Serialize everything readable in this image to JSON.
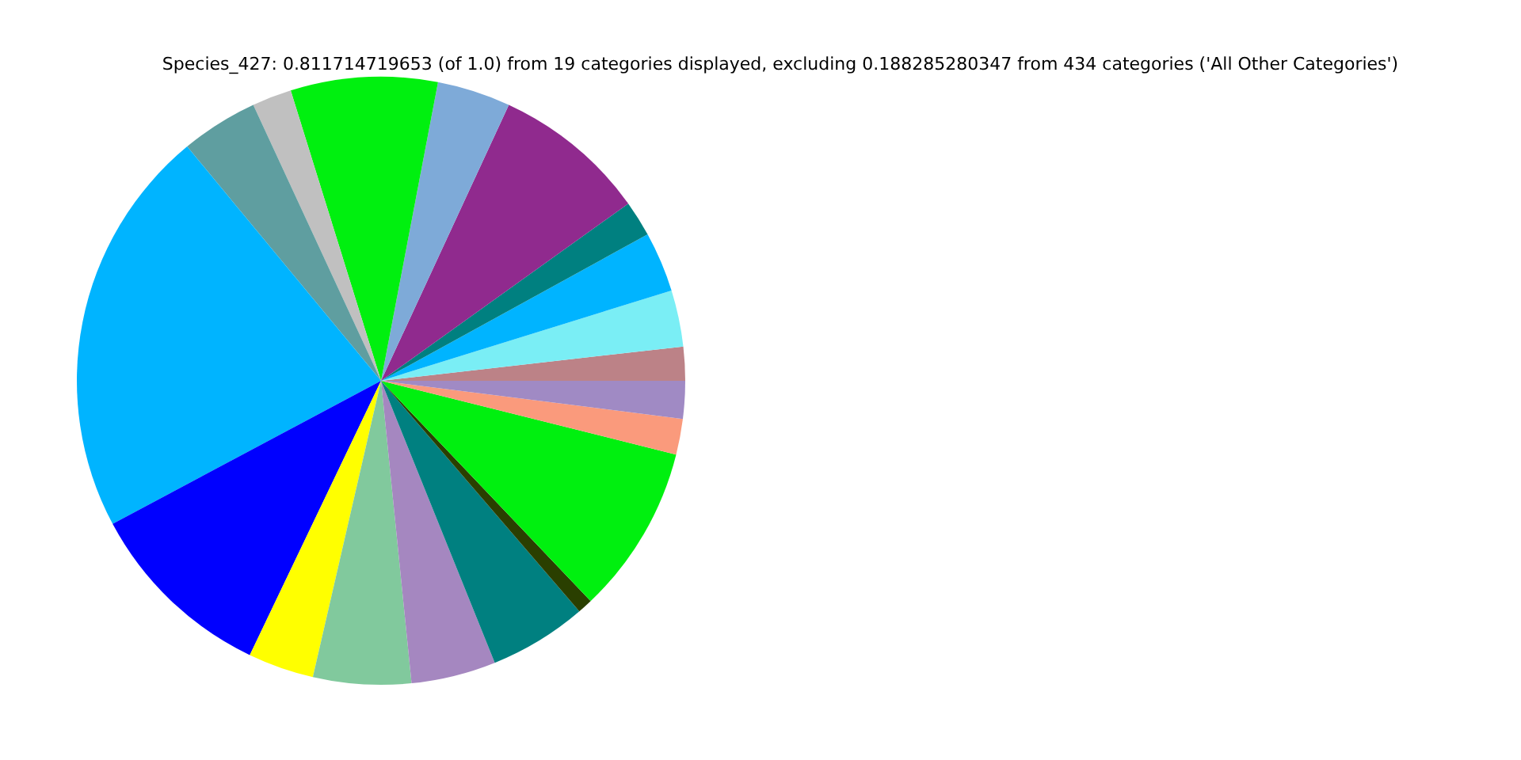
{
  "chart_data": {
    "type": "pie",
    "title": "Species_427: 0.811714719653 (of 1.0) from 19 categories displayed, excluding 0.188285280347 from 434 categories ('All Other Categories')",
    "categories": [
      null,
      null,
      null,
      null,
      null,
      null,
      null,
      null,
      null,
      null,
      null,
      null,
      null,
      null,
      null,
      null,
      null,
      null,
      null
    ],
    "values": [
      1.8,
      3.0,
      3.2,
      1.9,
      8.2,
      3.9,
      7.8,
      2.1,
      4.1,
      21.8,
      10.1,
      3.5,
      5.2,
      4.5,
      5.2,
      0.8,
      9.0,
      1.9,
      2.0
    ],
    "colors": [
      "#bc8287",
      "#7aeef5",
      "#00b4ff",
      "#008080",
      "#902a8e",
      "#7eaad8",
      "#00f00f",
      "#c0c0c0",
      "#5f9ea0",
      "#00b4ff",
      "#0000ff",
      "#ffff00",
      "#81c99d",
      "#a587c0",
      "#008080",
      "#2a3f00",
      "#00f00f",
      "#fa9a7c",
      "#a08ac4"
    ]
  }
}
